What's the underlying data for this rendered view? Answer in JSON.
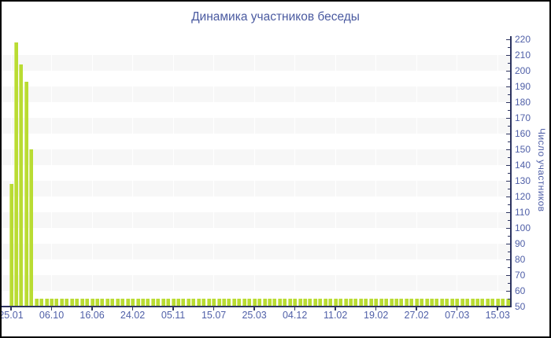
{
  "chart_data": {
    "type": "bar",
    "title": "Динамика участников беседы",
    "ylabel": "Число участников",
    "xlabel": "",
    "ylim": [
      50,
      220
    ],
    "y_tick_step": 10,
    "y_minor_tick_step": 5,
    "grid": "alternating horizontal bands, faint white vertical lines at x ticks",
    "legend": "none",
    "y_axis_position": "right",
    "x_tick_labels": [
      "25.01",
      "06.10",
      "16.06",
      "24.02",
      "05.11",
      "15.07",
      "25.03",
      "04.12",
      "11.02",
      "19.02",
      "27.02",
      "07.03",
      "15.03"
    ],
    "label_every_n_bars": 8,
    "values": [
      128,
      218,
      204,
      193,
      150,
      55,
      55,
      55,
      55,
      55,
      55,
      55,
      55,
      55,
      55,
      55,
      55,
      55,
      55,
      55,
      55,
      55,
      55,
      55,
      55,
      55,
      55,
      55,
      55,
      55,
      55,
      55,
      55,
      55,
      55,
      55,
      55,
      55,
      55,
      55,
      55,
      55,
      55,
      55,
      55,
      55,
      55,
      55,
      55,
      55,
      55,
      55,
      55,
      55,
      55,
      55,
      55,
      55,
      55,
      55,
      55,
      55,
      55,
      55,
      55,
      55,
      55,
      55,
      55,
      55,
      55,
      55,
      55,
      55,
      55,
      55,
      55,
      55,
      55,
      55,
      55,
      55,
      55,
      55,
      55,
      55,
      55,
      55,
      55,
      55,
      55,
      55,
      55,
      55,
      55,
      55,
      55,
      55,
      55
    ],
    "colors": {
      "bar": "#b9dc33",
      "bar_highlight": "#d6e879",
      "axis": "#2e3560",
      "tick_label": "#5060a8",
      "title": "#4a5aa0",
      "stripe": "#f7f7f7",
      "background": "#ffffff",
      "border": "#000000"
    }
  }
}
